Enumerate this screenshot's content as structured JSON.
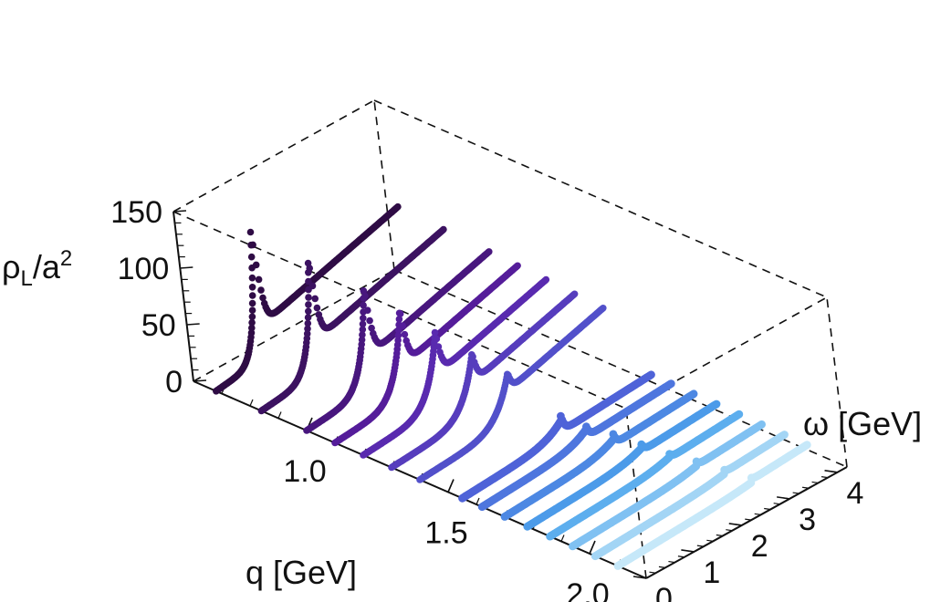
{
  "chart_data": {
    "type": "scatter",
    "projection": "3d",
    "box": "dashed",
    "zlabel_parts": {
      "rho": "ρ",
      "sub": "L",
      "slash": "/a",
      "sup": "2"
    },
    "xlabel": "q [GeV]",
    "ylabel": "ω [GeV]",
    "xticks": [
      "1.0",
      "1.5",
      "2.0"
    ],
    "yticks": [
      "0",
      "1",
      "2",
      "3",
      "4"
    ],
    "zticks": [
      "0",
      "50",
      "100",
      "150"
    ],
    "xlim": [
      0.6,
      2.2
    ],
    "ylim": [
      0,
      4.2
    ],
    "zlim": [
      0,
      150
    ],
    "colormap": [
      "#2f0c45",
      "#5b20a8",
      "#4f63d8",
      "#4ca4ec",
      "#c6e8f9"
    ],
    "series": [
      {
        "q": 0.68,
        "peak": 1.05,
        "height": 120
      },
      {
        "q": 0.84,
        "peak": 1.27,
        "height": 105
      },
      {
        "q": 1.0,
        "peak": 1.45,
        "height": 92
      },
      {
        "q": 1.1,
        "peak": 1.58,
        "height": 80
      },
      {
        "q": 1.2,
        "peak": 1.7,
        "height": 68
      },
      {
        "q": 1.3,
        "peak": 1.85,
        "height": 56
      },
      {
        "q": 1.4,
        "peak": 1.98,
        "height": 46
      },
      {
        "q": 1.55,
        "peak": 2.12,
        "height": 14
      },
      {
        "q": 1.62,
        "peak": 2.22,
        "height": 11
      },
      {
        "q": 1.7,
        "peak": 2.32,
        "height": 9
      },
      {
        "q": 1.78,
        "peak": 2.42,
        "height": 7
      },
      {
        "q": 1.86,
        "peak": 2.52,
        "height": 5
      },
      {
        "q": 1.94,
        "peak": 2.62,
        "height": 4
      },
      {
        "q": 2.02,
        "peak": 2.72,
        "height": 3
      },
      {
        "q": 2.1,
        "peak": 2.82,
        "height": 2
      }
    ]
  }
}
